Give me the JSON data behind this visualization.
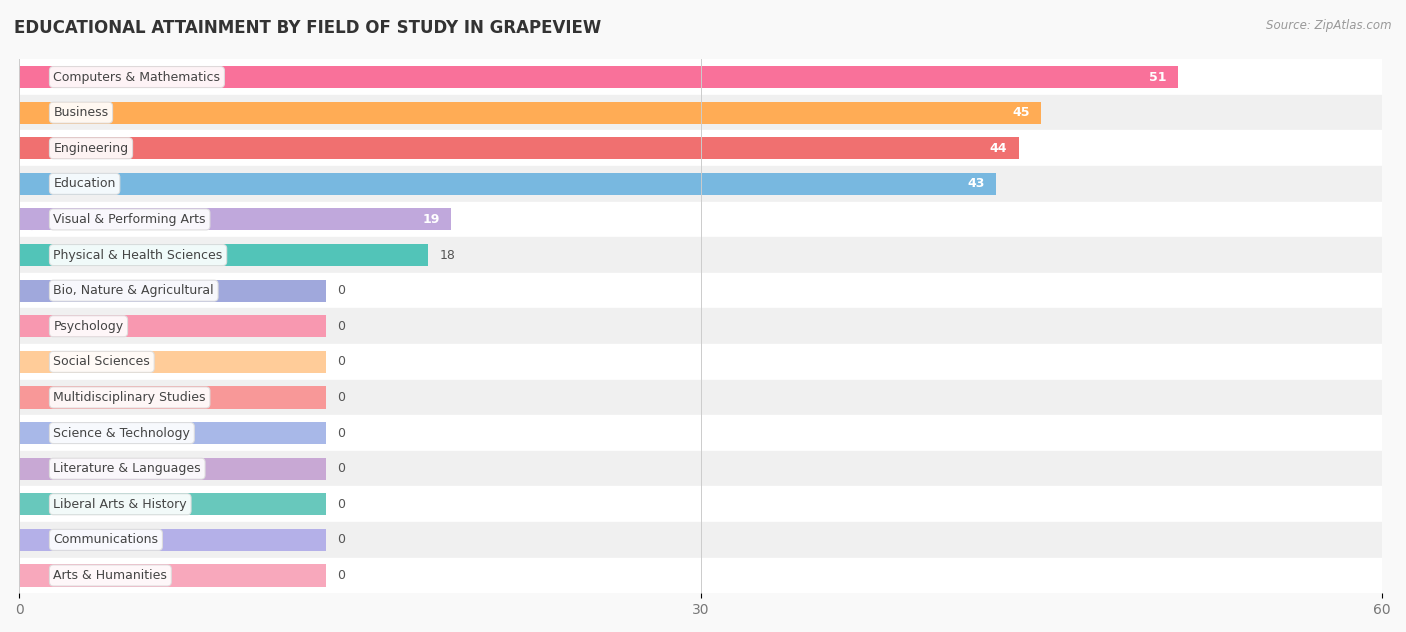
{
  "title": "EDUCATIONAL ATTAINMENT BY FIELD OF STUDY IN GRAPEVIEW",
  "source": "Source: ZipAtlas.com",
  "categories": [
    "Computers & Mathematics",
    "Business",
    "Engineering",
    "Education",
    "Visual & Performing Arts",
    "Physical & Health Sciences",
    "Bio, Nature & Agricultural",
    "Psychology",
    "Social Sciences",
    "Multidisciplinary Studies",
    "Science & Technology",
    "Literature & Languages",
    "Liberal Arts & History",
    "Communications",
    "Arts & Humanities"
  ],
  "values": [
    51,
    45,
    44,
    43,
    19,
    18,
    0,
    0,
    0,
    0,
    0,
    0,
    0,
    0,
    0
  ],
  "bar_colors": [
    "#F9719A",
    "#FFAC55",
    "#F07070",
    "#78B8E0",
    "#C0A8DC",
    "#52C4B8",
    "#A0A8DC",
    "#F898B0",
    "#FFCC99",
    "#F89898",
    "#A8B8E8",
    "#C8A8D4",
    "#68C8BC",
    "#B4B0E8",
    "#F8A8BC"
  ],
  "zero_bar_width": 13.5,
  "xlim": [
    0,
    60
  ],
  "xticks": [
    0,
    30,
    60
  ],
  "background_color": "#f9f9f9",
  "row_bg_even": "#ffffff",
  "row_bg_odd": "#f0f0f0",
  "title_fontsize": 12,
  "bar_height": 0.62,
  "label_fontsize": 9,
  "value_fontsize": 9,
  "label_text_color": "#444444"
}
